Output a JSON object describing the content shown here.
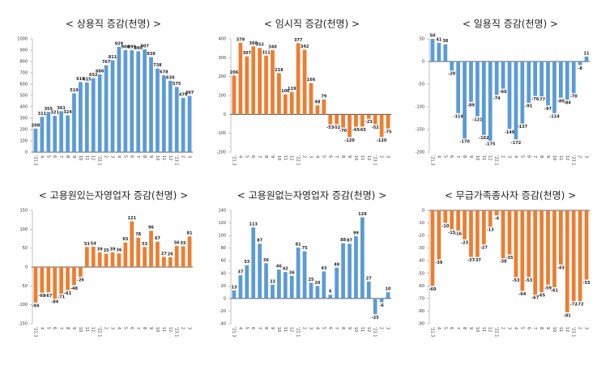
{
  "chart_data": [
    {
      "type": "bar",
      "title": "< 상용직  증감(천명) >",
      "color": "#5b9bd5",
      "categories": [
        "'21.3",
        "4",
        "5",
        "6",
        "7",
        "8",
        "9",
        "10",
        "11",
        "12",
        "'22.1",
        "2",
        "3",
        "4",
        "5",
        "6",
        "7",
        "8",
        "9",
        "10",
        "11",
        "12",
        "'23.1",
        "2",
        "3"
      ],
      "values": [
        208,
        311,
        355,
        321,
        361,
        324,
        519,
        619,
        615,
        652,
        686,
        767,
        811,
        929,
        900,
        899,
        890,
        907,
        839,
        738,
        678,
        630,
        575,
        479,
        497
      ],
      "ylim": [
        0,
        1000
      ],
      "yticks": [
        0,
        100,
        200,
        300,
        400,
        500,
        600,
        700,
        800,
        900,
        1000
      ]
    },
    {
      "type": "bar",
      "title": "< 임시직 증감(천명) >",
      "color": "#ed7d31",
      "categories": [
        "'21.3",
        "4",
        "5",
        "6",
        "7",
        "8",
        "9",
        "10",
        "11",
        "12",
        "'22.1",
        "2",
        "3",
        "4",
        "5",
        "6",
        "7",
        "8",
        "9",
        "10",
        "11",
        "12",
        "'23.1",
        "2",
        "3"
      ],
      "values": [
        206,
        379,
        307,
        360,
        352,
        311,
        340,
        218,
        106,
        119,
        377,
        342,
        166,
        48,
        79,
        -53,
        -52,
        -70,
        -120,
        -65,
        -65,
        -23,
        -52,
        -120,
        -75
      ],
      "ylim": [
        -200,
        400
      ],
      "yticks": [
        -200,
        -100,
        0,
        100,
        200,
        300,
        400
      ]
    },
    {
      "type": "bar",
      "title": "< 일용직 증감(천명) >",
      "color": "#5b9bd5",
      "categories": [
        "'21.3",
        "4",
        "5",
        "6",
        "7",
        "8",
        "9",
        "10",
        "11",
        "12",
        "'22.1",
        "2",
        "3",
        "4",
        "5",
        "6",
        "7",
        "8",
        "9",
        "10",
        "11",
        "12",
        "'23.1",
        "2",
        "3"
      ],
      "values": [
        50,
        41,
        38,
        -20,
        -114,
        -170,
        -89,
        -121,
        -162,
        -175,
        -74,
        -60,
        -149,
        -172,
        -137,
        -91,
        -76,
        -77,
        -97,
        -114,
        -80,
        -84,
        -70,
        -8,
        11
      ],
      "ylim": [
        -200,
        50
      ],
      "yticks": [
        -200,
        -150,
        -100,
        -50,
        0,
        50
      ]
    },
    {
      "type": "bar",
      "title": "< 고용원있는자영업자 증감(천명) >",
      "color": "#ed7d31",
      "categories": [
        "'21.3",
        "4",
        "5",
        "6",
        "7",
        "8",
        "9",
        "10",
        "11",
        "12",
        "'22.1",
        "2",
        "3",
        "4",
        "5",
        "6",
        "7",
        "8",
        "9",
        "10",
        "11",
        "12",
        "'23.1",
        "2",
        "3"
      ],
      "values": [
        -94,
        -68,
        -67,
        -84,
        -71,
        -61,
        -48,
        -26,
        53,
        54,
        39,
        35,
        39,
        36,
        65,
        121,
        78,
        53,
        96,
        67,
        27,
        26,
        56,
        55,
        81
      ],
      "ylim": [
        -150,
        150
      ],
      "yticks": [
        -150,
        -100,
        -50,
        0,
        50,
        100,
        150
      ]
    },
    {
      "type": "bar",
      "title": "< 고용원없는자영업자 증감(천명) >",
      "color": "#5b9bd5",
      "categories": [
        "'21.3",
        "4",
        "5",
        "6",
        "7",
        "8",
        "9",
        "10",
        "11",
        "12",
        "'22.1",
        "2",
        "3",
        "4",
        "5",
        "6",
        "7",
        "8",
        "9",
        "10",
        "11",
        "12",
        "'23.1",
        "2",
        "3"
      ],
      "values": [
        13,
        37,
        53,
        113,
        87,
        56,
        22,
        46,
        42,
        36,
        81,
        75,
        25,
        20,
        43,
        6,
        49,
        88,
        87,
        99,
        129,
        27,
        -25,
        -6,
        10
      ],
      "ylim": [
        -40,
        140
      ],
      "yticks": [
        -40,
        -20,
        0,
        20,
        40,
        60,
        80,
        100,
        120,
        140
      ]
    },
    {
      "type": "bar",
      "title": "< 무급가족종사자 증감(천명) >",
      "color": "#ed7d31",
      "categories": [
        "'21.3",
        "4",
        "5",
        "6",
        "7",
        "8",
        "9",
        "10",
        "11",
        "12",
        "'22.1",
        "2",
        "3",
        "4",
        "5",
        "6",
        "7",
        "8",
        "9",
        "10",
        "11",
        "12",
        "'23.1",
        "2",
        "3"
      ],
      "values": [
        -60,
        -39,
        -10,
        -15,
        -16,
        -23,
        -37,
        -37,
        -27,
        -13,
        -4,
        -38,
        -35,
        -53,
        -64,
        -53,
        -67,
        -65,
        -59,
        -61,
        -43,
        -81,
        -72,
        -72,
        -55
      ],
      "ylim": [
        -90,
        0
      ],
      "yticks": [
        -90,
        -80,
        -70,
        -60,
        -50,
        -40,
        -30,
        -20,
        -10,
        0
      ]
    }
  ]
}
